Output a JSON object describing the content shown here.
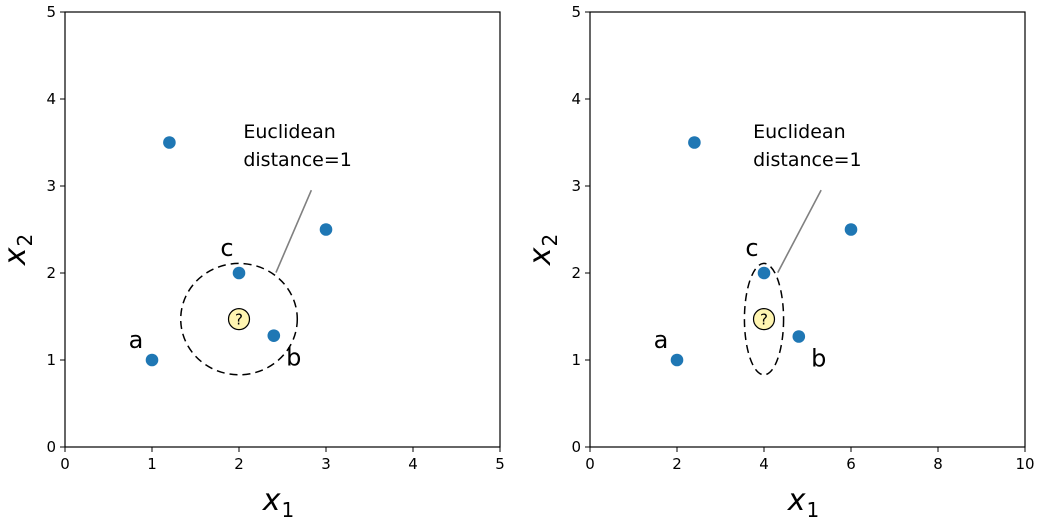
{
  "chart_data": [
    {
      "type": "scatter",
      "xlabel": "x",
      "xlabel_sub": "1",
      "ylabel": "x",
      "ylabel_sub": "2",
      "xlim": [
        0,
        5
      ],
      "ylim": [
        0,
        5
      ],
      "xticks": [
        0,
        1,
        2,
        3,
        4,
        5
      ],
      "yticks": [
        0,
        1,
        2,
        3,
        4,
        5
      ],
      "grid": false,
      "point_color": "#1f77b4",
      "points": [
        {
          "x": 1.0,
          "y": 1.0,
          "label": "a"
        },
        {
          "x": 2.4,
          "y": 1.28,
          "label": "b"
        },
        {
          "x": 2.0,
          "y": 2.0,
          "label": "c"
        },
        {
          "x": 1.2,
          "y": 3.5,
          "label": ""
        },
        {
          "x": 3.0,
          "y": 2.5,
          "label": ""
        }
      ],
      "query": {
        "x": 2.0,
        "y": 1.47,
        "symbol": "?",
        "color": "#fff5b1"
      },
      "distance_ellipse": {
        "cx": 2.0,
        "cy": 1.47,
        "rx": 0.67,
        "ry": 0.64
      },
      "annotation": {
        "lines": [
          "Euclidean",
          "distance=1"
        ],
        "x": 2.05,
        "y": 3.55
      }
    },
    {
      "type": "scatter",
      "xlabel": "x",
      "xlabel_sub": "1",
      "ylabel": "x",
      "ylabel_sub": "2",
      "xlim": [
        0,
        10
      ],
      "ylim": [
        0,
        5
      ],
      "xticks": [
        0,
        2,
        4,
        6,
        8,
        10
      ],
      "yticks": [
        0,
        1,
        2,
        3,
        4,
        5
      ],
      "grid": false,
      "point_color": "#1f77b4",
      "points": [
        {
          "x": 2.0,
          "y": 1.0,
          "label": "a"
        },
        {
          "x": 4.8,
          "y": 1.27,
          "label": "b"
        },
        {
          "x": 4.0,
          "y": 2.0,
          "label": "c"
        },
        {
          "x": 2.4,
          "y": 3.5,
          "label": ""
        },
        {
          "x": 6.0,
          "y": 2.5,
          "label": ""
        }
      ],
      "query": {
        "x": 4.0,
        "y": 1.47,
        "symbol": "?",
        "color": "#fff5b1"
      },
      "distance_ellipse": {
        "cx": 4.0,
        "cy": 1.47,
        "rx": 0.45,
        "ry": 0.64
      },
      "annotation": {
        "lines": [
          "Euclidean",
          "distance=1"
        ],
        "x": 3.75,
        "y": 3.55
      }
    }
  ]
}
